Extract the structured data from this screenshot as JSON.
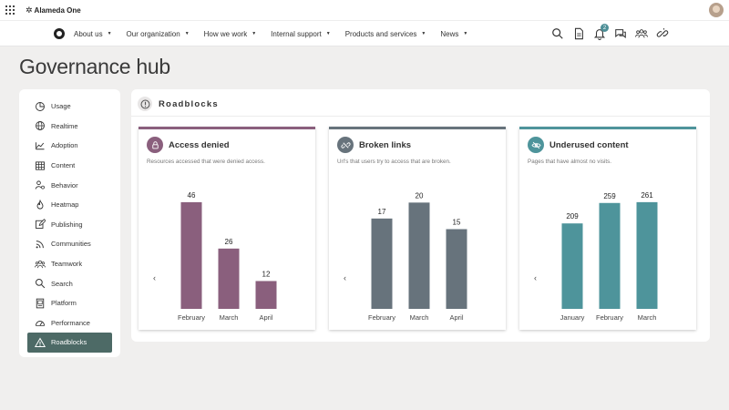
{
  "app": {
    "name": "Alameda One"
  },
  "nav": {
    "items": [
      {
        "label": "About us"
      },
      {
        "label": "Our organization"
      },
      {
        "label": "How we work"
      },
      {
        "label": "Internal support"
      },
      {
        "label": "Products and services"
      },
      {
        "label": "News"
      }
    ],
    "icons": [
      "search-icon",
      "document-icon",
      "bell-icon",
      "chat-icon",
      "people-icon",
      "link-icon",
      "more-icon"
    ],
    "notification_count": "2"
  },
  "page": {
    "title": "Governance hub"
  },
  "sidebar": {
    "items": [
      {
        "label": "Usage",
        "icon": "pie-chart-icon"
      },
      {
        "label": "Realtime",
        "icon": "globe-icon"
      },
      {
        "label": "Adoption",
        "icon": "trend-icon"
      },
      {
        "label": "Content",
        "icon": "grid-table-icon"
      },
      {
        "label": "Behavior",
        "icon": "user-gear-icon"
      },
      {
        "label": "Heatmap",
        "icon": "flame-icon"
      },
      {
        "label": "Publishing",
        "icon": "edit-icon"
      },
      {
        "label": "Communities",
        "icon": "rss-icon"
      },
      {
        "label": "Teamwork",
        "icon": "team-icon"
      },
      {
        "label": "Search",
        "icon": "search-icon"
      },
      {
        "label": "Platform",
        "icon": "platform-icon"
      },
      {
        "label": "Performance",
        "icon": "gauge-icon"
      },
      {
        "label": "Roadblocks",
        "icon": "warning-icon",
        "active": true
      }
    ]
  },
  "section": {
    "title": "Roadblocks",
    "icon": "alert-circle-icon"
  },
  "cards": [
    {
      "title": "Access denied",
      "subtitle": "Resources accessed that were denied access.",
      "icon": "lock-icon",
      "color": "#8a5f7d",
      "chart_data": {
        "type": "bar",
        "categories": [
          "February",
          "March",
          "April"
        ],
        "values": [
          46,
          26,
          12
        ],
        "ylim": [
          0,
          55
        ]
      }
    },
    {
      "title": "Broken links",
      "subtitle": "Url's that users try to access that are broken.",
      "icon": "broken-link-icon",
      "color": "#67737c",
      "chart_data": {
        "type": "bar",
        "categories": [
          "February",
          "March",
          "April"
        ],
        "values": [
          17,
          20,
          15
        ],
        "ylim": [
          0,
          24
        ]
      }
    },
    {
      "title": "Underused content",
      "subtitle": "Pages that have almost no visits.",
      "icon": "eye-off-icon",
      "color": "#4e949b",
      "chart_data": {
        "type": "bar",
        "categories": [
          "January",
          "February",
          "March"
        ],
        "values": [
          209,
          259,
          261
        ],
        "ylim": [
          0,
          312
        ]
      }
    }
  ],
  "colors": {
    "accent": "#4d6a66",
    "access": "#8a5f7d",
    "broken": "#67737c",
    "underused": "#4e949b"
  }
}
